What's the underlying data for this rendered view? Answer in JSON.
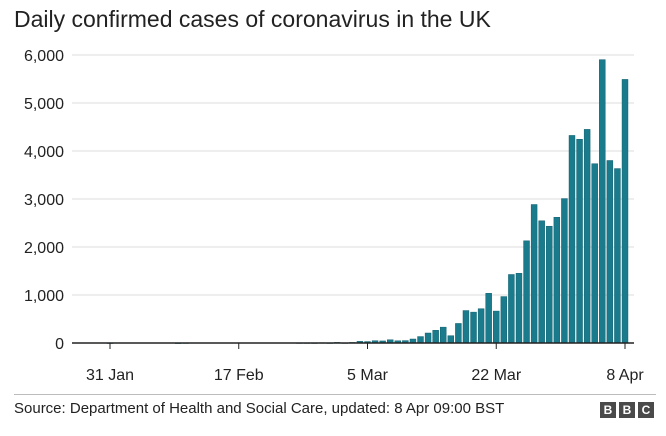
{
  "title": "Daily confirmed cases of coronavirus in the UK",
  "source": "Source: Department of Health and Social Care, updated: 8 Apr 09:00 BST",
  "logo": {
    "letters": [
      "B",
      "B",
      "C"
    ]
  },
  "colors": {
    "bar": "#1a7b8c",
    "bar_edge": "#0e5f6e",
    "grid": "#dddddd",
    "axis": "#222222"
  },
  "chart_data": {
    "type": "bar",
    "title": "Daily confirmed cases of coronavirus in the UK",
    "xlabel": "",
    "ylabel": "",
    "ylim": [
      0,
      6000
    ],
    "yticks": [
      0,
      1000,
      2000,
      3000,
      4000,
      5000,
      6000
    ],
    "ytick_labels": [
      "0",
      "1,000",
      "2,000",
      "3,000",
      "4,000",
      "5,000",
      "6,000"
    ],
    "xtick_labels": [
      {
        "label": "31 Jan",
        "date": "2020-01-31"
      },
      {
        "label": "17 Feb",
        "date": "2020-02-17"
      },
      {
        "label": "5 Mar",
        "date": "2020-03-05"
      },
      {
        "label": "22 Mar",
        "date": "2020-03-22"
      },
      {
        "label": "8 Apr",
        "date": "2020-04-08"
      }
    ],
    "grid": "horizontal",
    "categories": [
      "2020-01-31",
      "2020-02-01",
      "2020-02-02",
      "2020-02-03",
      "2020-02-04",
      "2020-02-05",
      "2020-02-06",
      "2020-02-07",
      "2020-02-08",
      "2020-02-09",
      "2020-02-10",
      "2020-02-11",
      "2020-02-12",
      "2020-02-13",
      "2020-02-14",
      "2020-02-15",
      "2020-02-16",
      "2020-02-17",
      "2020-02-18",
      "2020-02-19",
      "2020-02-20",
      "2020-02-21",
      "2020-02-22",
      "2020-02-23",
      "2020-02-24",
      "2020-02-25",
      "2020-02-26",
      "2020-02-27",
      "2020-02-28",
      "2020-02-29",
      "2020-03-01",
      "2020-03-02",
      "2020-03-03",
      "2020-03-04",
      "2020-03-05",
      "2020-03-06",
      "2020-03-07",
      "2020-03-08",
      "2020-03-09",
      "2020-03-10",
      "2020-03-11",
      "2020-03-12",
      "2020-03-13",
      "2020-03-14",
      "2020-03-15",
      "2020-03-16",
      "2020-03-17",
      "2020-03-18",
      "2020-03-19",
      "2020-03-20",
      "2020-03-21",
      "2020-03-22",
      "2020-03-23",
      "2020-03-24",
      "2020-03-25",
      "2020-03-26",
      "2020-03-27",
      "2020-03-28",
      "2020-03-29",
      "2020-03-30",
      "2020-03-31",
      "2020-04-01",
      "2020-04-02",
      "2020-04-03",
      "2020-04-04",
      "2020-04-05",
      "2020-04-06",
      "2020-04-07",
      "2020-04-08"
    ],
    "values": [
      2,
      0,
      0,
      0,
      0,
      0,
      0,
      0,
      0,
      1,
      4,
      0,
      0,
      0,
      0,
      0,
      0,
      0,
      0,
      0,
      0,
      0,
      0,
      0,
      0,
      4,
      4,
      3,
      6,
      3,
      12,
      4,
      11,
      34,
      30,
      48,
      43,
      67,
      46,
      50,
      83,
      134,
      208,
      264,
      330,
      152,
      407,
      676,
      643,
      714,
      1035,
      665,
      967,
      1427,
      1452,
      2129,
      2885,
      2546,
      2433,
      2619,
      3009,
      4324,
      4244,
      4450,
      3735,
      5903,
      3802,
      3634,
      5491
    ]
  }
}
